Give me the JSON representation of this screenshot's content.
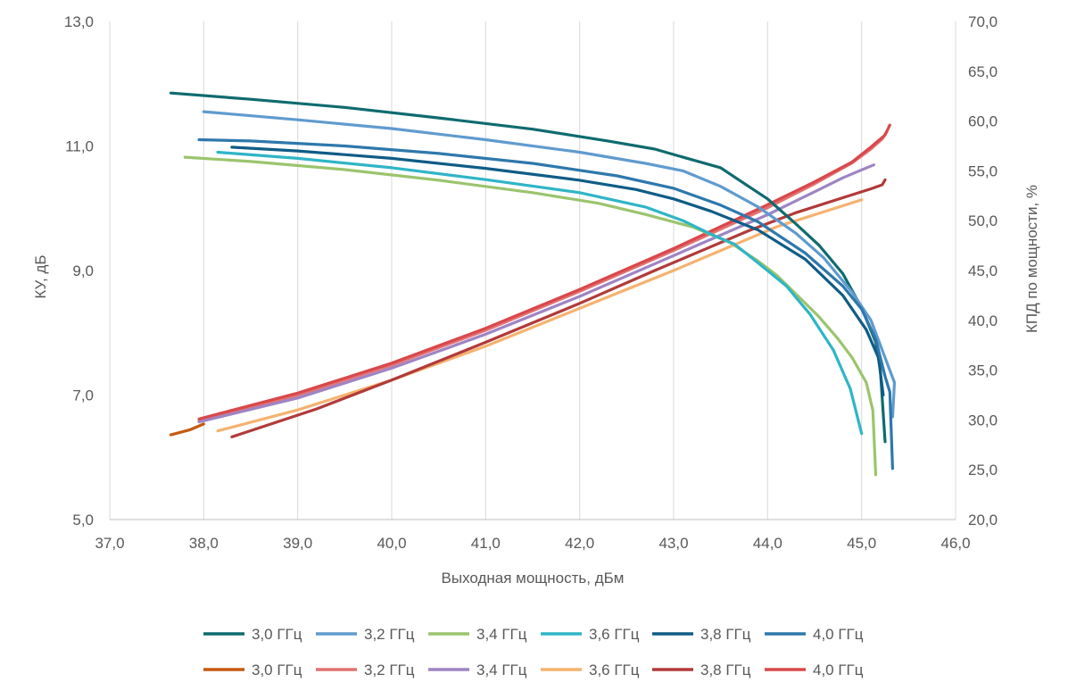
{
  "chart_data": {
    "type": "line",
    "xlabel": "Выходная мощность, дБм",
    "ylabel": "КУ, дБ",
    "y2label": "КПД по мощности, %",
    "xlim": [
      37,
      46
    ],
    "ylim": [
      5,
      13
    ],
    "y2lim": [
      20,
      70
    ],
    "x_ticks": [
      "37,0",
      "38,0",
      "39,0",
      "40,0",
      "41,0",
      "42,0",
      "43,0",
      "44,0",
      "45,0",
      "46,0"
    ],
    "y_ticks": [
      "5,0",
      "7,0",
      "9,0",
      "11,0",
      "13,0"
    ],
    "y2_ticks": [
      "20,0",
      "25,0",
      "30,0",
      "35,0",
      "40,0",
      "45,0",
      "50,0",
      "55,0",
      "60,0",
      "65,0",
      "70,0"
    ],
    "grid": "vertical",
    "legend_position": "bottom",
    "gain_series": [
      {
        "name": "3,0 ГГц",
        "color": "#0E6B6E",
        "axis": "left",
        "points": [
          [
            37.65,
            11.85
          ],
          [
            38.5,
            11.75
          ],
          [
            39.5,
            11.62
          ],
          [
            40.5,
            11.45
          ],
          [
            41.5,
            11.27
          ],
          [
            42.3,
            11.08
          ],
          [
            42.8,
            10.95
          ],
          [
            43.1,
            10.82
          ],
          [
            43.5,
            10.65
          ],
          [
            43.7,
            10.45
          ],
          [
            44.0,
            10.15
          ],
          [
            44.3,
            9.75
          ],
          [
            44.55,
            9.4
          ],
          [
            44.8,
            8.95
          ],
          [
            45.0,
            8.4
          ],
          [
            45.15,
            7.85
          ],
          [
            45.2,
            7.4
          ],
          [
            45.25,
            6.25
          ]
        ]
      },
      {
        "name": "3,2 ГГц",
        "color": "#5F9BCE",
        "axis": "left",
        "points": [
          [
            38.0,
            11.55
          ],
          [
            39.0,
            11.42
          ],
          [
            40.0,
            11.28
          ],
          [
            41.0,
            11.1
          ],
          [
            42.0,
            10.9
          ],
          [
            42.7,
            10.72
          ],
          [
            43.1,
            10.6
          ],
          [
            43.5,
            10.35
          ],
          [
            43.9,
            10.02
          ],
          [
            44.3,
            9.6
          ],
          [
            44.6,
            9.2
          ],
          [
            44.9,
            8.65
          ],
          [
            45.1,
            8.2
          ],
          [
            45.25,
            7.6
          ],
          [
            45.35,
            7.2
          ],
          [
            45.33,
            6.65
          ]
        ]
      },
      {
        "name": "3,4 ГГц",
        "color": "#9BC46D",
        "axis": "left",
        "points": [
          [
            37.8,
            10.82
          ],
          [
            38.5,
            10.75
          ],
          [
            39.5,
            10.62
          ],
          [
            40.5,
            10.45
          ],
          [
            41.5,
            10.25
          ],
          [
            42.2,
            10.08
          ],
          [
            42.7,
            9.9
          ],
          [
            43.2,
            9.7
          ],
          [
            43.6,
            9.45
          ],
          [
            43.9,
            9.15
          ],
          [
            44.1,
            8.92
          ],
          [
            44.35,
            8.55
          ],
          [
            44.55,
            8.25
          ],
          [
            44.75,
            7.9
          ],
          [
            44.9,
            7.6
          ],
          [
            45.05,
            7.2
          ],
          [
            45.12,
            6.75
          ],
          [
            45.15,
            5.72
          ]
        ]
      },
      {
        "name": "3,6 ГГц",
        "color": "#2FB5C6",
        "axis": "left",
        "points": [
          [
            38.15,
            10.9
          ],
          [
            39.0,
            10.8
          ],
          [
            40.0,
            10.65
          ],
          [
            41.0,
            10.46
          ],
          [
            42.0,
            10.25
          ],
          [
            42.7,
            10.02
          ],
          [
            43.1,
            9.8
          ],
          [
            43.4,
            9.58
          ],
          [
            43.65,
            9.42
          ],
          [
            43.9,
            9.12
          ],
          [
            44.2,
            8.75
          ],
          [
            44.45,
            8.3
          ],
          [
            44.7,
            7.72
          ],
          [
            44.88,
            7.1
          ],
          [
            45.0,
            6.38
          ]
        ]
      },
      {
        "name": "3,8 ГГц",
        "color": "#0F5C86",
        "axis": "left",
        "points": [
          [
            38.3,
            10.98
          ],
          [
            39.0,
            10.92
          ],
          [
            40.0,
            10.8
          ],
          [
            41.0,
            10.64
          ],
          [
            42.0,
            10.45
          ],
          [
            42.6,
            10.3
          ],
          [
            43.0,
            10.15
          ],
          [
            43.4,
            9.95
          ],
          [
            43.9,
            9.65
          ],
          [
            44.4,
            9.18
          ],
          [
            44.8,
            8.6
          ],
          [
            45.05,
            8.05
          ],
          [
            45.18,
            7.6
          ],
          [
            45.23,
            7.0
          ]
        ]
      },
      {
        "name": "4,0 ГГц",
        "color": "#2E78AC",
        "axis": "left",
        "points": [
          [
            37.95,
            11.1
          ],
          [
            38.5,
            11.08
          ],
          [
            39.5,
            11.0
          ],
          [
            40.5,
            10.88
          ],
          [
            41.5,
            10.72
          ],
          [
            42.4,
            10.52
          ],
          [
            43.0,
            10.32
          ],
          [
            43.5,
            10.05
          ],
          [
            43.9,
            9.78
          ],
          [
            44.4,
            9.28
          ],
          [
            44.8,
            8.75
          ],
          [
            45.0,
            8.38
          ],
          [
            45.15,
            7.9
          ],
          [
            45.25,
            7.3
          ],
          [
            45.3,
            7.05
          ],
          [
            45.33,
            5.82
          ]
        ]
      }
    ],
    "eff_series": [
      {
        "name": "3,0 ГГц",
        "color": "#C55A11",
        "axis": "right",
        "points": [
          [
            37.65,
            28.5
          ],
          [
            37.85,
            29.0
          ],
          [
            38.0,
            29.6
          ]
        ]
      },
      {
        "name": "3,2 ГГц",
        "color": "#E27272",
        "axis": "right",
        "points": [
          [
            37.95,
            29.9
          ],
          [
            39.0,
            32.5
          ],
          [
            40.0,
            35.5
          ],
          [
            41.0,
            39.0
          ],
          [
            42.0,
            42.9
          ],
          [
            43.0,
            47.0
          ],
          [
            44.0,
            51.3
          ],
          [
            44.5,
            53.7
          ],
          [
            44.9,
            55.8
          ],
          [
            45.1,
            57.2
          ],
          [
            45.22,
            58.2
          ],
          [
            45.27,
            59.0
          ]
        ]
      },
      {
        "name": "3,4 ГГц",
        "color": "#9E84C4",
        "axis": "right",
        "points": [
          [
            37.95,
            29.8
          ],
          [
            39.0,
            32.2
          ],
          [
            40.0,
            35.2
          ],
          [
            41.0,
            38.6
          ],
          [
            42.0,
            42.4
          ],
          [
            43.0,
            46.5
          ],
          [
            44.0,
            50.6
          ],
          [
            44.5,
            52.9
          ],
          [
            44.8,
            54.3
          ],
          [
            45.0,
            55.1
          ],
          [
            45.13,
            55.6
          ]
        ]
      },
      {
        "name": "3,6 ГГц",
        "color": "#F5B26F",
        "axis": "right",
        "points": [
          [
            38.15,
            28.9
          ],
          [
            39.0,
            31.0
          ],
          [
            40.0,
            34.0
          ],
          [
            41.0,
            37.4
          ],
          [
            42.0,
            41.2
          ],
          [
            43.0,
            45.0
          ],
          [
            43.7,
            47.8
          ],
          [
            44.1,
            49.4
          ],
          [
            44.5,
            50.6
          ],
          [
            44.8,
            51.5
          ],
          [
            45.0,
            52.1
          ]
        ]
      },
      {
        "name": "3,8 ГГц",
        "color": "#B23A3A",
        "axis": "right",
        "points": [
          [
            38.3,
            28.3
          ],
          [
            39.2,
            31.1
          ],
          [
            40.0,
            34.0
          ],
          [
            41.0,
            37.8
          ],
          [
            42.0,
            41.7
          ],
          [
            42.8,
            45.0
          ],
          [
            43.3,
            47.0
          ],
          [
            43.8,
            49.0
          ],
          [
            44.3,
            50.8
          ],
          [
            44.8,
            52.3
          ],
          [
            45.1,
            53.2
          ],
          [
            45.22,
            53.6
          ],
          [
            45.25,
            54.1
          ]
        ]
      },
      {
        "name": "4,0 ГГц",
        "color": "#D9484B",
        "axis": "right",
        "points": [
          [
            37.95,
            30.1
          ],
          [
            39.0,
            32.7
          ],
          [
            40.0,
            35.7
          ],
          [
            41.0,
            39.2
          ],
          [
            42.0,
            43.1
          ],
          [
            43.0,
            47.2
          ],
          [
            44.0,
            51.6
          ],
          [
            44.5,
            53.9
          ],
          [
            44.9,
            55.9
          ],
          [
            45.1,
            57.4
          ],
          [
            45.25,
            58.6
          ],
          [
            45.3,
            59.6
          ]
        ]
      }
    ]
  }
}
